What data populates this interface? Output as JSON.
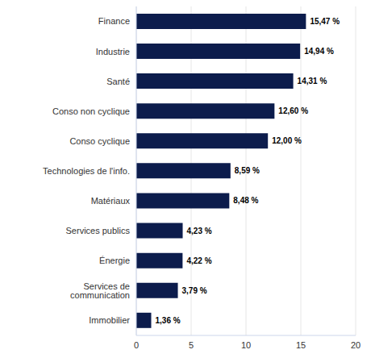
{
  "chart_data": {
    "type": "bar",
    "orientation": "horizontal",
    "categories": [
      "Finance",
      "Industrie",
      "Santé",
      "Conso non cyclique",
      "Conso cyclique",
      "Technologies de l'info.",
      "Matériaux",
      "Services publics",
      "Énergie",
      "Services de communication",
      "Immobilier"
    ],
    "values": [
      15.47,
      14.94,
      14.31,
      12.6,
      12.0,
      8.59,
      8.48,
      4.23,
      4.22,
      3.79,
      1.36
    ],
    "value_labels": [
      "15,47 %",
      "14,94 %",
      "14,31 %",
      "12,60 %",
      "12,00 %",
      "8,59 %",
      "8,48 %",
      "4,23 %",
      "4,22 %",
      "3,79 %",
      "1,36 %"
    ],
    "color": "#0c1c4c",
    "xlim": [
      0,
      20
    ],
    "xticks": [
      0,
      5,
      10,
      15,
      20
    ],
    "grid": true,
    "data_labels": true
  }
}
